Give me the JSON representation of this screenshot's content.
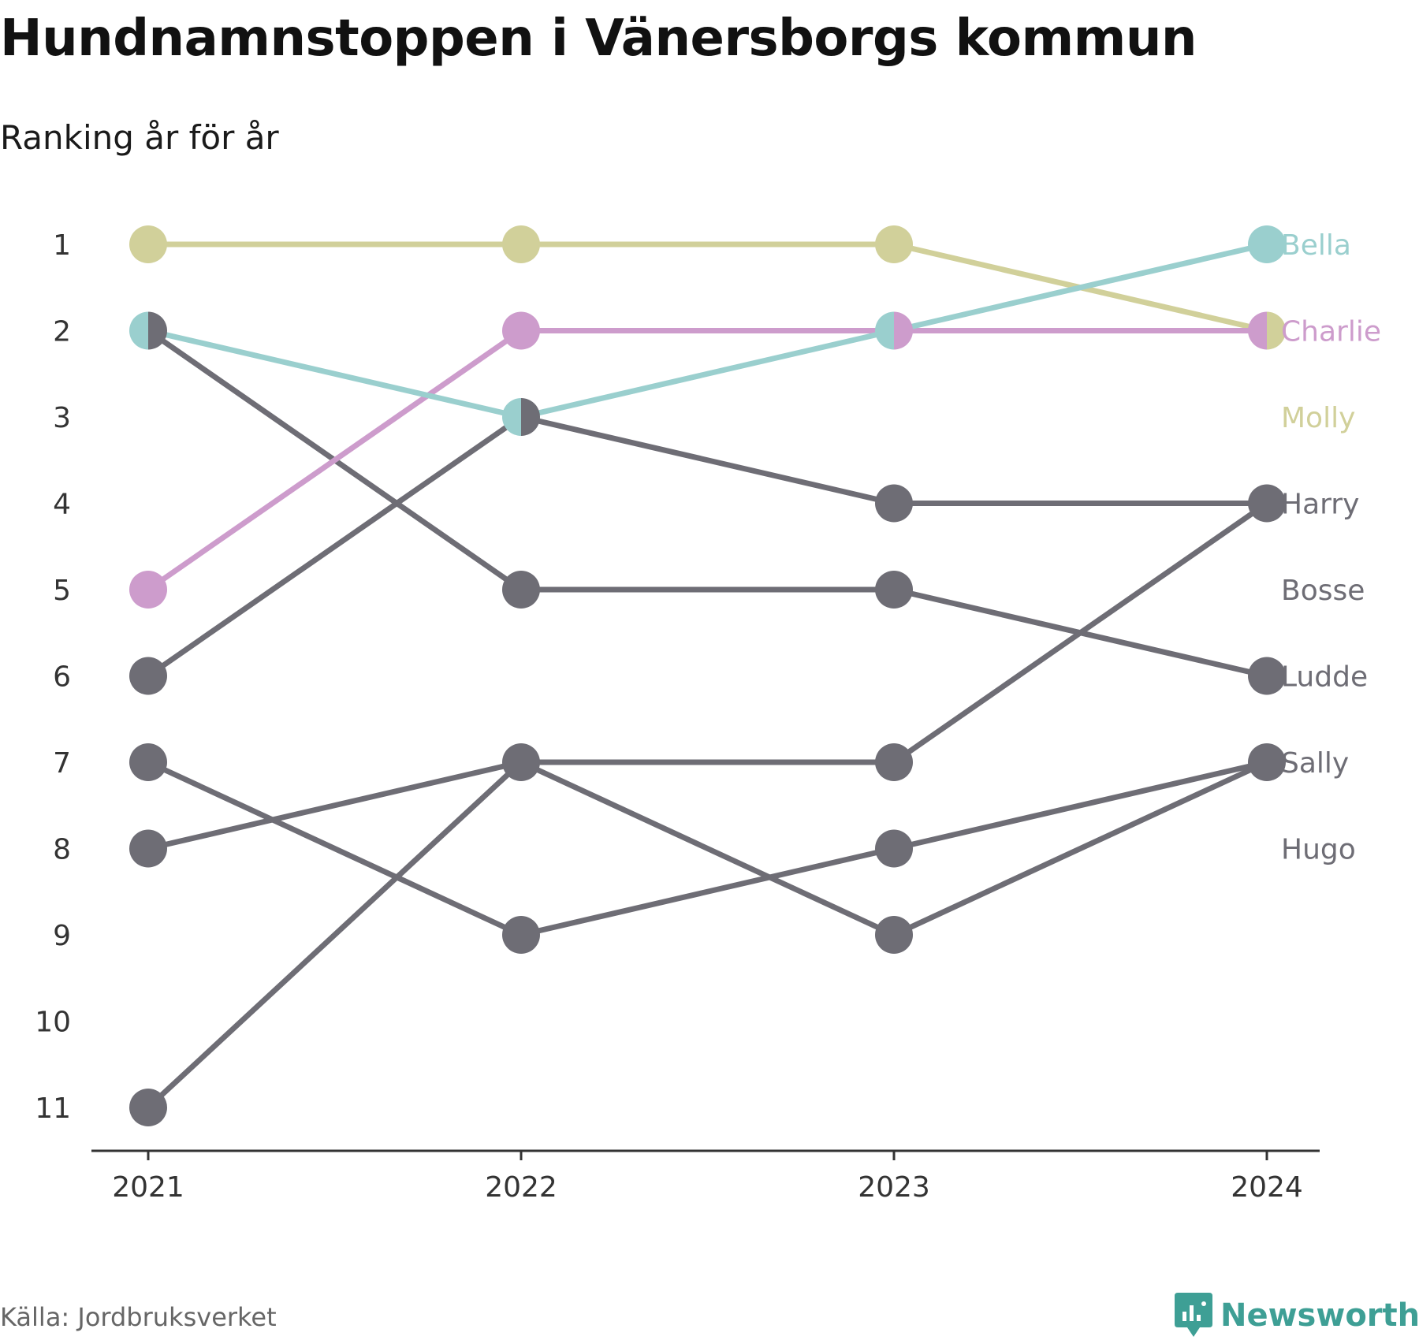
{
  "title": "Hundnamnstoppen i Vänersborgs kommun",
  "subtitle": "Ranking år för år",
  "source": "Källa: Jordbruksverket",
  "brand": "Newsworthy",
  "colors": {
    "bella": "#9acfce",
    "charlie": "#cd9ccc",
    "molly": "#d1d09a",
    "other": "#6e6d75",
    "axis": "#333333",
    "brand": "#3e9f95"
  },
  "chart_data": {
    "type": "line",
    "x": [
      "2021",
      "2022",
      "2023",
      "2024"
    ],
    "ylim": [
      1,
      11
    ],
    "y_inverted": true,
    "y_ticks": [
      "1",
      "2",
      "3",
      "4",
      "5",
      "6",
      "7",
      "8",
      "9",
      "10",
      "11"
    ],
    "series": [
      {
        "name": "Hugo",
        "values": [
          11,
          7,
          7,
          4
        ],
        "color": "other"
      },
      {
        "name": "Sally",
        "values": [
          8,
          7,
          9,
          7
        ],
        "color": "other"
      },
      {
        "name": "Ludde",
        "values": [
          7,
          9,
          8,
          7
        ],
        "color": "other"
      },
      {
        "name": "Bosse",
        "values": [
          2,
          5,
          5,
          6
        ],
        "color": "other"
      },
      {
        "name": "Harry",
        "values": [
          6,
          3,
          4,
          4
        ],
        "color": "other"
      },
      {
        "name": "Molly",
        "values": [
          1,
          1,
          1,
          2
        ],
        "color": "molly"
      },
      {
        "name": "Charlie",
        "values": [
          5,
          2,
          2,
          2
        ],
        "color": "charlie"
      },
      {
        "name": "Bella",
        "values": [
          2,
          3,
          2,
          1
        ],
        "color": "bella"
      }
    ],
    "labels": [
      {
        "text": "Bella",
        "rank": 1,
        "color": "bella"
      },
      {
        "text": "Charlie",
        "rank": 2,
        "color": "charlie"
      },
      {
        "text": "Molly",
        "rank": 3,
        "color": "molly"
      },
      {
        "text": "Harry",
        "rank": 4,
        "color": "other"
      },
      {
        "text": "Bosse",
        "rank": 5,
        "color": "other"
      },
      {
        "text": "Ludde",
        "rank": 6,
        "color": "other"
      },
      {
        "text": "Sally",
        "rank": 7,
        "color": "other"
      },
      {
        "text": "Hugo",
        "rank": 8,
        "color": "other"
      }
    ]
  }
}
